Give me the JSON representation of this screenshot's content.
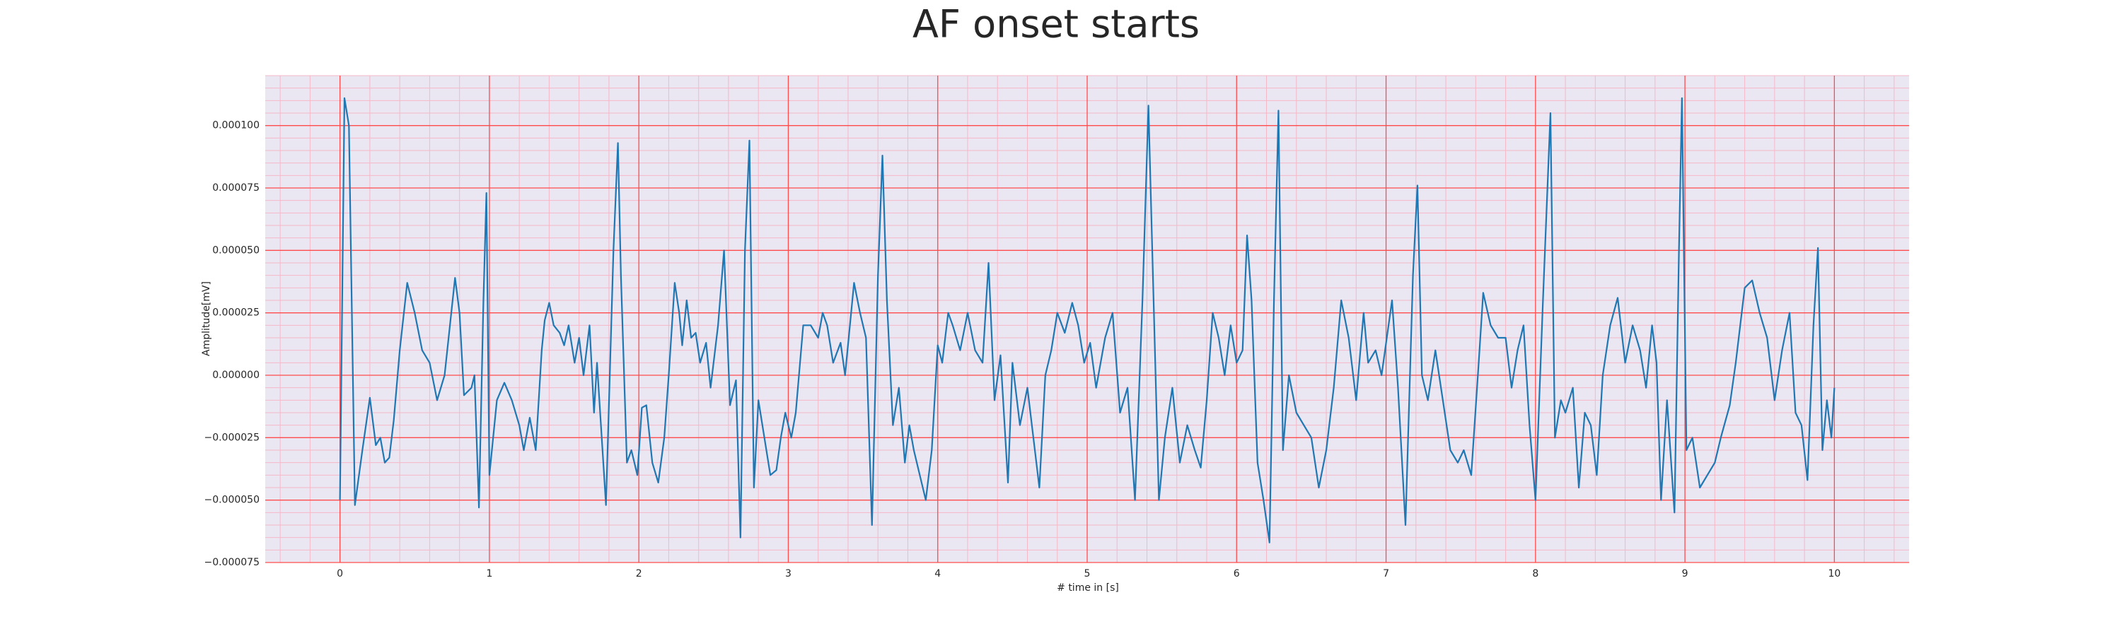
{
  "chart_data": {
    "type": "line",
    "title": "AF onset starts",
    "x_label": "# time in [s]",
    "y_label": "Amplitude[mV]",
    "xlim": [
      -0.5,
      10.5
    ],
    "ylim": [
      -7.5e-05,
      0.00012
    ],
    "xticks": [
      0,
      1,
      2,
      3,
      4,
      5,
      6,
      7,
      8,
      9,
      10
    ],
    "yticks": [
      {
        "value": -7.5e-05,
        "label": "−0.000075"
      },
      {
        "value": -5e-05,
        "label": "−0.000050"
      },
      {
        "value": -2.5e-05,
        "label": "−0.000025"
      },
      {
        "value": 0,
        "label": "0.000000"
      },
      {
        "value": 2.5e-05,
        "label": "0.000025"
      },
      {
        "value": 5e-05,
        "label": "0.000050"
      },
      {
        "value": 7.5e-05,
        "label": "0.000075"
      },
      {
        "value": 0.0001,
        "label": "0.000100"
      }
    ],
    "grid": true,
    "minor_grid": true,
    "grid_color": "#ff4d4d",
    "minor_grid_color": "#f5b8c8",
    "background": "#eae6f2",
    "x": [
      0,
      0.03,
      0.06,
      0.1,
      0.15,
      0.2,
      0.24,
      0.27,
      0.3,
      0.33,
      0.36,
      0.4,
      0.45,
      0.5,
      0.55,
      0.6,
      0.65,
      0.7,
      0.77,
      0.8,
      0.83,
      0.88,
      0.9,
      0.93,
      0.96,
      0.98,
      1.0,
      1.05,
      1.1,
      1.15,
      1.2,
      1.23,
      1.27,
      1.31,
      1.35,
      1.37,
      1.4,
      1.43,
      1.47,
      1.5,
      1.53,
      1.57,
      1.6,
      1.63,
      1.67,
      1.7,
      1.72,
      1.78,
      1.83,
      1.86,
      1.88,
      1.92,
      1.95,
      1.99,
      2.02,
      2.05,
      2.09,
      2.13,
      2.17,
      2.2,
      2.24,
      2.27,
      2.29,
      2.32,
      2.35,
      2.38,
      2.41,
      2.45,
      2.48,
      2.53,
      2.57,
      2.61,
      2.65,
      2.68,
      2.71,
      2.74,
      2.77,
      2.8,
      2.84,
      2.88,
      2.92,
      2.95,
      2.98,
      3.02,
      3.05,
      3.1,
      3.15,
      3.2,
      3.23,
      3.26,
      3.3,
      3.35,
      3.38,
      3.44,
      3.48,
      3.52,
      3.56,
      3.6,
      3.63,
      3.66,
      3.7,
      3.74,
      3.78,
      3.81,
      3.84,
      3.88,
      3.92,
      3.96,
      4.0,
      4.03,
      4.07,
      4.1,
      4.15,
      4.2,
      4.25,
      4.3,
      4.34,
      4.38,
      4.42,
      4.47,
      4.5,
      4.55,
      4.6,
      4.64,
      4.68,
      4.72,
      4.76,
      4.8,
      4.85,
      4.9,
      4.94,
      4.98,
      5.02,
      5.06,
      5.12,
      5.17,
      5.22,
      5.27,
      5.32,
      5.37,
      5.41,
      5.44,
      5.48,
      5.52,
      5.57,
      5.62,
      5.67,
      5.72,
      5.76,
      5.8,
      5.84,
      5.88,
      5.92,
      5.96,
      6.0,
      6.04,
      6.07,
      6.1,
      6.14,
      6.18,
      6.22,
      6.25,
      6.28,
      6.31,
      6.35,
      6.4,
      6.45,
      6.5,
      6.55,
      6.6,
      6.65,
      6.7,
      6.75,
      6.8,
      6.85,
      6.88,
      6.93,
      6.97,
      7.04,
      7.08,
      7.13,
      7.18,
      7.21,
      7.24,
      7.28,
      7.33,
      7.38,
      7.43,
      7.48,
      7.52,
      7.57,
      7.62,
      7.65,
      7.7,
      7.75,
      7.8,
      7.84,
      7.88,
      7.92,
      7.96,
      8.0,
      8.05,
      8.1,
      8.13,
      8.17,
      8.2,
      8.25,
      8.29,
      8.33,
      8.37,
      8.41,
      8.45,
      8.5,
      8.55,
      8.6,
      8.65,
      8.7,
      8.74,
      8.78,
      8.81,
      8.84,
      8.88,
      8.93,
      8.96,
      8.98,
      9.01,
      9.05,
      9.1,
      9.15,
      9.2,
      9.24,
      9.3,
      9.34,
      9.4,
      9.45,
      9.5,
      9.55,
      9.6,
      9.65,
      9.7,
      9.74,
      9.78,
      9.82,
      9.86,
      9.89,
      9.92,
      9.95,
      9.98,
      10.0
    ],
    "series": [
      {
        "color": "#1f77b4",
        "values": [
          -5e-05,
          0.000111,
          0.0001,
          -5.2e-05,
          -3e-05,
          -9e-06,
          -2.8e-05,
          -2.5e-05,
          -3.5e-05,
          -3.3e-05,
          -1.8e-05,
          1e-05,
          3.7e-05,
          2.5e-05,
          1e-05,
          5e-06,
          -1e-05,
          0,
          3.9e-05,
          2.5e-05,
          -8e-06,
          -5e-06,
          0,
          -5.3e-05,
          3e-05,
          7.3e-05,
          -4e-05,
          -1e-05,
          -3e-06,
          -1e-05,
          -2e-05,
          -3e-05,
          -1.7e-05,
          -3e-05,
          1e-05,
          2.2e-05,
          2.9e-05,
          2e-05,
          1.7e-05,
          1.2e-05,
          2e-05,
          5e-06,
          1.5e-05,
          0,
          2e-05,
          -1.5e-05,
          5e-06,
          -5.2e-05,
          5e-05,
          9.3e-05,
          4e-05,
          -3.5e-05,
          -3e-05,
          -4e-05,
          -1.3e-05,
          -1.2e-05,
          -3.5e-05,
          -4.3e-05,
          -2.5e-05,
          0,
          3.7e-05,
          2.5e-05,
          1.2e-05,
          3e-05,
          1.5e-05,
          1.7e-05,
          5e-06,
          1.3e-05,
          -5e-06,
          2e-05,
          5e-05,
          -1.2e-05,
          -2e-06,
          -6.5e-05,
          5e-05,
          9.4e-05,
          -4.5e-05,
          -1e-05,
          -2.5e-05,
          -4e-05,
          -3.8e-05,
          -2.5e-05,
          -1.5e-05,
          -2.5e-05,
          -1.5e-05,
          2e-05,
          2e-05,
          1.5e-05,
          2.5e-05,
          2e-05,
          5e-06,
          1.3e-05,
          0,
          3.7e-05,
          2.5e-05,
          1.5e-05,
          -6e-05,
          4e-05,
          8.8e-05,
          3e-05,
          -2e-05,
          -5e-06,
          -3.5e-05,
          -2e-05,
          -3e-05,
          -4e-05,
          -5e-05,
          -3e-05,
          1.2e-05,
          5e-06,
          2.5e-05,
          2e-05,
          1e-05,
          2.5e-05,
          1e-05,
          5e-06,
          4.5e-05,
          -1e-05,
          8e-06,
          -4.3e-05,
          5e-06,
          -2e-05,
          -5e-06,
          -2.5e-05,
          -4.5e-05,
          0,
          1e-05,
          2.5e-05,
          1.7e-05,
          2.9e-05,
          2e-05,
          5e-06,
          1.3e-05,
          -5e-06,
          1.5e-05,
          2.5e-05,
          -1.5e-05,
          -5e-06,
          -5e-05,
          3e-05,
          0.000108,
          4e-05,
          -5e-05,
          -2.5e-05,
          -5e-06,
          -3.5e-05,
          -2e-05,
          -3e-05,
          -3.7e-05,
          -1e-05,
          2.5e-05,
          1.5e-05,
          0,
          2e-05,
          5e-06,
          1e-05,
          5.6e-05,
          3e-05,
          -3.5e-05,
          -5e-05,
          -6.7e-05,
          3e-05,
          0.000106,
          -3e-05,
          0,
          -1.5e-05,
          -2e-05,
          -2.5e-05,
          -4.5e-05,
          -3e-05,
          -5e-06,
          3e-05,
          1.5e-05,
          -1e-05,
          2.5e-05,
          5e-06,
          1e-05,
          0,
          3e-05,
          -5e-06,
          -6e-05,
          4e-05,
          7.6e-05,
          0,
          -1e-05,
          1e-05,
          -1e-05,
          -3e-05,
          -3.5e-05,
          -3e-05,
          -4e-05,
          5e-06,
          3.3e-05,
          2e-05,
          1.5e-05,
          1.5e-05,
          -5e-06,
          1e-05,
          2e-05,
          -2e-05,
          -5e-05,
          3e-05,
          0.000105,
          -2.5e-05,
          -1e-05,
          -1.5e-05,
          -5e-06,
          -4.5e-05,
          -1.5e-05,
          -2e-05,
          -4e-05,
          0,
          2e-05,
          3.1e-05,
          5e-06,
          2e-05,
          1e-05,
          -5e-06,
          2e-05,
          5e-06,
          -5e-05,
          -1e-05,
          -5.5e-05,
          5e-05,
          0.000111,
          -3e-05,
          -2.5e-05,
          -4.5e-05,
          -4e-05,
          -3.5e-05,
          -2.5e-05,
          -1.2e-05,
          5e-06,
          3.5e-05,
          3.8e-05,
          2.5e-05,
          1.5e-05,
          -1e-05,
          1e-05,
          2.5e-05,
          -1.5e-05,
          -2e-05,
          -4.2e-05,
          2e-05,
          5.1e-05,
          -3e-05,
          -1e-05,
          -2.5e-05,
          -5e-06
        ]
      }
    ]
  }
}
